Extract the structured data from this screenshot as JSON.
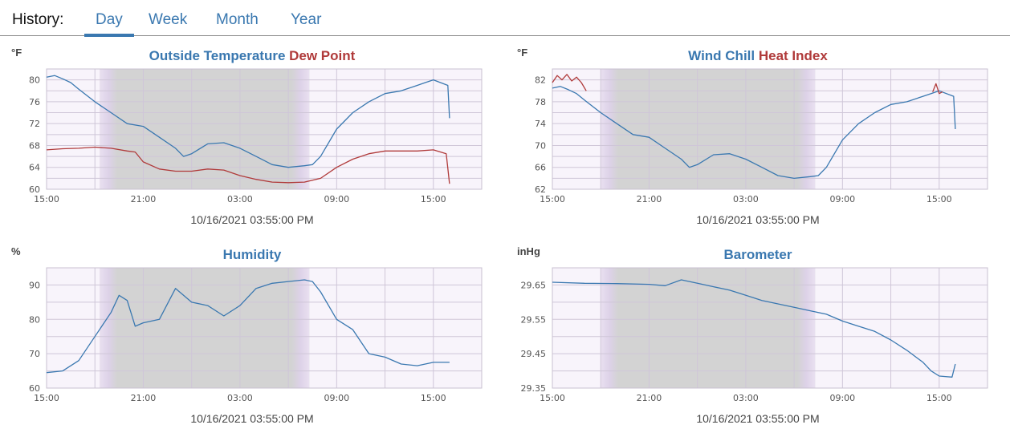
{
  "history": {
    "label": "History:",
    "tabs": [
      {
        "label": "Day",
        "active": true
      },
      {
        "label": "Week",
        "active": false
      },
      {
        "label": "Month",
        "active": false
      },
      {
        "label": "Year",
        "active": false
      }
    ]
  },
  "colors": {
    "accent": "#3a78b0",
    "series_blue": "#3a78b0",
    "series_red": "#b03a3a",
    "night_shade": "#d3d3d3",
    "plot_background": "#f8f4fb",
    "grid": "#cfc6d8"
  },
  "chart_data": [
    {
      "type": "line",
      "unit_label": "°F",
      "title_parts": [
        {
          "text": "Outside Temperature",
          "color": "#3a78b0"
        },
        {
          "text": " Dew Point",
          "color": "#b03a3a"
        }
      ],
      "timestamp": "10/16/2021 03:55:00 PM",
      "x_tick_labels": [
        "15:00",
        "21:00",
        "03:00",
        "09:00",
        "15:00"
      ],
      "x_tick_hours": [
        0,
        6,
        12,
        18,
        24
      ],
      "xlim_hours": [
        0,
        27
      ],
      "night_hours": [
        3.3,
        16.3
      ],
      "ylim": [
        60,
        82
      ],
      "y_ticks": [
        60,
        64,
        68,
        72,
        76,
        80
      ],
      "y_minor_step": 2,
      "series": [
        {
          "color": "#3a78b0",
          "x": [
            0,
            0.5,
            1,
            1.5,
            2,
            3,
            4,
            5,
            6,
            7,
            8,
            8.5,
            9,
            10,
            11,
            12,
            13,
            14,
            15,
            16,
            16.5,
            17,
            18,
            19,
            20,
            21,
            22,
            23,
            23.5,
            24,
            24.9,
            25
          ],
          "y": [
            80.5,
            80.8,
            80.2,
            79.5,
            78.3,
            76,
            74,
            72,
            71.5,
            69.5,
            67.5,
            66,
            66.5,
            68.3,
            68.5,
            67.5,
            66,
            64.5,
            64,
            64.3,
            64.5,
            66,
            71,
            74,
            76,
            77.5,
            78,
            79,
            79.5,
            80,
            79,
            73
          ]
        },
        {
          "color": "#b03a3a",
          "x": [
            0,
            1,
            2,
            3,
            4,
            5,
            5.5,
            6,
            7,
            8,
            9,
            10,
            11,
            12,
            13,
            14,
            15,
            16,
            17,
            18,
            19,
            20,
            21,
            22,
            23,
            24,
            24.8,
            25
          ],
          "y": [
            67.2,
            67.4,
            67.5,
            67.7,
            67.5,
            67,
            66.8,
            65,
            63.7,
            63.3,
            63.3,
            63.7,
            63.5,
            62.5,
            61.8,
            61.3,
            61.2,
            61.3,
            62,
            64,
            65.5,
            66.5,
            67,
            67,
            67,
            67.2,
            66.5,
            61
          ]
        }
      ]
    },
    {
      "type": "line",
      "unit_label": "°F",
      "title_parts": [
        {
          "text": "Wind Chill",
          "color": "#3a78b0"
        },
        {
          "text": " Heat Index",
          "color": "#b03a3a"
        }
      ],
      "timestamp": "10/16/2021 03:55:00 PM",
      "x_tick_labels": [
        "15:00",
        "21:00",
        "03:00",
        "09:00",
        "15:00"
      ],
      "x_tick_hours": [
        0,
        6,
        12,
        18,
        24
      ],
      "xlim_hours": [
        0,
        27
      ],
      "night_hours": [
        3.0,
        16.3
      ],
      "ylim": [
        62,
        84
      ],
      "y_ticks": [
        62,
        66,
        70,
        74,
        78,
        82
      ],
      "y_minor_step": 2,
      "series": [
        {
          "color": "#3a78b0",
          "x": [
            0,
            0.5,
            1,
            1.5,
            2,
            3,
            4,
            5,
            6,
            7,
            8,
            8.5,
            9,
            10,
            11,
            12,
            13,
            14,
            15,
            16,
            16.5,
            17,
            18,
            19,
            20,
            21,
            22,
            23,
            23.5,
            24,
            24.9,
            25
          ],
          "y": [
            80.5,
            80.8,
            80.2,
            79.5,
            78.3,
            76,
            74,
            72,
            71.5,
            69.5,
            67.5,
            66,
            66.5,
            68.3,
            68.5,
            67.5,
            66,
            64.5,
            64,
            64.3,
            64.5,
            66,
            71,
            74,
            76,
            77.5,
            78,
            79,
            79.5,
            80,
            79,
            73
          ]
        },
        {
          "color": "#b03a3a",
          "x": [
            0,
            0.3,
            0.6,
            0.9,
            1.2,
            1.5,
            1.8,
            2.1
          ],
          "y": [
            81.5,
            82.8,
            82,
            83,
            81.8,
            82.5,
            81.5,
            80
          ]
        },
        {
          "color": "#b03a3a",
          "x": [
            23.6,
            23.8,
            24.0,
            24.2
          ],
          "y": [
            79.8,
            81.3,
            79.5,
            79.8
          ]
        }
      ]
    },
    {
      "type": "line",
      "unit_label": "%",
      "title_parts": [
        {
          "text": "Humidity",
          "color": "#3a78b0"
        }
      ],
      "timestamp": "10/16/2021 03:55:00 PM",
      "x_tick_labels": [
        "15:00",
        "21:00",
        "03:00",
        "09:00",
        "15:00"
      ],
      "x_tick_hours": [
        0,
        6,
        12,
        18,
        24
      ],
      "xlim_hours": [
        0,
        27
      ],
      "night_hours": [
        3.3,
        16.3
      ],
      "ylim": [
        60,
        95
      ],
      "y_ticks": [
        60,
        70,
        80,
        90
      ],
      "y_minor_step": 5,
      "series": [
        {
          "color": "#3a78b0",
          "x": [
            0,
            1,
            2,
            3,
            4,
            4.5,
            5,
            5.5,
            6,
            7,
            8,
            9,
            10,
            11,
            12,
            13,
            14,
            15,
            16,
            16.5,
            17,
            18,
            19,
            20,
            21,
            22,
            23,
            24,
            25
          ],
          "y": [
            64.5,
            65,
            68,
            75,
            82,
            87,
            85.5,
            78,
            79,
            80,
            89,
            85,
            84,
            81,
            84,
            89,
            90.5,
            91,
            91.5,
            91,
            88,
            80,
            77,
            70,
            69,
            67,
            66.5,
            67.5,
            67.5
          ]
        }
      ]
    },
    {
      "type": "line",
      "unit_label": "inHg",
      "title_parts": [
        {
          "text": "Barometer",
          "color": "#3a78b0"
        }
      ],
      "timestamp": "10/16/2021 03:55:00 PM",
      "x_tick_labels": [
        "15:00",
        "21:00",
        "03:00",
        "09:00",
        "15:00"
      ],
      "x_tick_hours": [
        0,
        6,
        12,
        18,
        24
      ],
      "xlim_hours": [
        0,
        27
      ],
      "night_hours": [
        3.0,
        16.3
      ],
      "ylim": [
        29.35,
        29.7
      ],
      "y_ticks": [
        29.35,
        29.45,
        29.55,
        29.65
      ],
      "y_minor_step": 0.05,
      "series": [
        {
          "color": "#3a78b0",
          "x": [
            0,
            2,
            4,
            6,
            7,
            8,
            9,
            10,
            11,
            12,
            13,
            14,
            15,
            16,
            17,
            18,
            19,
            20,
            21,
            22,
            23,
            23.5,
            24,
            24.8,
            25
          ],
          "y": [
            29.658,
            29.655,
            29.654,
            29.652,
            29.648,
            29.665,
            29.655,
            29.645,
            29.635,
            29.62,
            29.605,
            29.595,
            29.585,
            29.575,
            29.565,
            29.545,
            29.53,
            29.515,
            29.49,
            29.46,
            29.425,
            29.4,
            29.385,
            29.382,
            29.42
          ]
        }
      ]
    }
  ]
}
